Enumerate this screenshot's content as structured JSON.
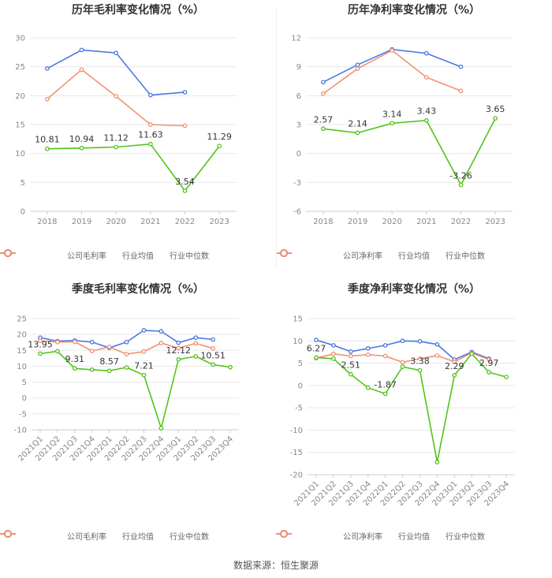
{
  "footer": {
    "source": "数据来源：恒生聚源"
  },
  "colors": {
    "company": "#52c41a",
    "industry_avg": "#4a78e0",
    "industry_median": "#f29070",
    "grid": "#e8e8e8",
    "axis_text": "#888888"
  },
  "legend_icons": {
    "company": "circle-line-icon",
    "industry_avg": "circle-line-icon",
    "industry_median": "circle-line-icon"
  },
  "chart_data": [
    {
      "type": "line",
      "title": "历年毛利率变化情况（%）",
      "categories": [
        "2018",
        "2019",
        "2020",
        "2021",
        "2022",
        "2023"
      ],
      "ylim": [
        0,
        30
      ],
      "yticks": [
        0,
        5,
        10,
        15,
        20,
        25,
        30
      ],
      "grid": true,
      "legend_position": "bottom",
      "series": [
        {
          "name": "公司毛利率",
          "key": "company",
          "values": [
            10.81,
            10.94,
            11.12,
            11.63,
            3.54,
            11.29
          ],
          "labels": [
            "10.81",
            "10.94",
            "11.12",
            "11.63",
            "3.54",
            "11.29"
          ]
        },
        {
          "name": "行业均值",
          "key": "industry_avg",
          "values": [
            24.7,
            27.9,
            27.4,
            20.1,
            20.6,
            null
          ]
        },
        {
          "name": "行业中位数",
          "key": "industry_median",
          "values": [
            19.4,
            24.5,
            19.9,
            15.0,
            14.8,
            null
          ]
        }
      ]
    },
    {
      "type": "line",
      "title": "历年净利率变化情况（%）",
      "categories": [
        "2018",
        "2019",
        "2020",
        "2021",
        "2022",
        "2023"
      ],
      "ylim": [
        -6,
        12
      ],
      "yticks": [
        -6,
        -3,
        0,
        3,
        6,
        9,
        12
      ],
      "grid": true,
      "legend_position": "bottom",
      "series": [
        {
          "name": "公司净利率",
          "key": "company",
          "values": [
            2.57,
            2.14,
            3.14,
            3.43,
            -3.26,
            3.65
          ],
          "labels": [
            "2.57",
            "2.14",
            "3.14",
            "3.43",
            "-3.26",
            "3.65"
          ]
        },
        {
          "name": "行业均值",
          "key": "industry_avg",
          "values": [
            7.4,
            9.2,
            10.8,
            10.4,
            9.0,
            null
          ]
        },
        {
          "name": "行业中位数",
          "key": "industry_median",
          "values": [
            6.2,
            8.8,
            10.7,
            7.9,
            6.5,
            null
          ]
        }
      ]
    },
    {
      "type": "line",
      "title": "季度毛利率变化情况（%）",
      "categories": [
        "2021Q1",
        "2021Q2",
        "2021Q3",
        "2021Q4",
        "2022Q1",
        "2022Q2",
        "2022Q3",
        "2022Q4",
        "2023Q1",
        "2023Q2",
        "2023Q3",
        "2023Q4"
      ],
      "ylim": [
        -10,
        25
      ],
      "yticks": [
        -10,
        -5,
        0,
        5,
        10,
        15,
        20,
        25
      ],
      "grid": true,
      "legend_position": "bottom",
      "series": [
        {
          "name": "公司毛利率",
          "key": "company",
          "values": [
            13.95,
            14.7,
            9.31,
            8.9,
            8.57,
            9.6,
            7.21,
            -9.5,
            12.12,
            13.1,
            10.51,
            9.7
          ],
          "labels": [
            "13.95",
            "",
            "9.31",
            "",
            "8.57",
            "",
            "7.21",
            "",
            "12.12",
            "",
            "10.51",
            ""
          ]
        },
        {
          "name": "行业均值",
          "key": "industry_avg",
          "values": [
            19.0,
            17.9,
            18.1,
            17.6,
            15.8,
            17.6,
            21.3,
            21.0,
            17.4,
            19.0,
            18.4,
            null
          ]
        },
        {
          "name": "行业中位数",
          "key": "industry_median",
          "values": [
            18.0,
            17.6,
            17.7,
            14.8,
            16.1,
            13.8,
            14.6,
            17.3,
            15.7,
            17.2,
            15.6,
            null
          ]
        }
      ]
    },
    {
      "type": "line",
      "title": "季度净利率变化情况（%）",
      "categories": [
        "2021Q1",
        "2021Q2",
        "2021Q3",
        "2021Q4",
        "2022Q1",
        "2022Q2",
        "2022Q3",
        "2022Q4",
        "2023Q1",
        "2023Q2",
        "2023Q3",
        "2023Q4"
      ],
      "ylim": [
        -20,
        15
      ],
      "yticks": [
        -20,
        -15,
        -10,
        -5,
        0,
        5,
        10,
        15
      ],
      "grid": true,
      "legend_position": "bottom",
      "series": [
        {
          "name": "公司净利率",
          "key": "company",
          "values": [
            6.27,
            6.0,
            2.51,
            -0.5,
            -1.87,
            4.2,
            3.38,
            -17.2,
            2.29,
            7.1,
            2.97,
            1.9
          ],
          "labels": [
            "6.27",
            "",
            "2.51",
            "",
            "-1.87",
            "",
            "3.38",
            "",
            "2.29",
            "",
            "2.97",
            ""
          ]
        },
        {
          "name": "行业均值",
          "key": "industry_avg",
          "values": [
            10.2,
            9.0,
            7.6,
            8.3,
            9.0,
            10.0,
            9.9,
            9.2,
            5.8,
            7.5,
            6.0,
            null
          ]
        },
        {
          "name": "行业中位数",
          "key": "industry_median",
          "values": [
            6.1,
            7.1,
            6.6,
            6.9,
            6.6,
            5.2,
            6.0,
            6.7,
            5.3,
            7.3,
            5.8,
            null
          ]
        }
      ]
    }
  ]
}
